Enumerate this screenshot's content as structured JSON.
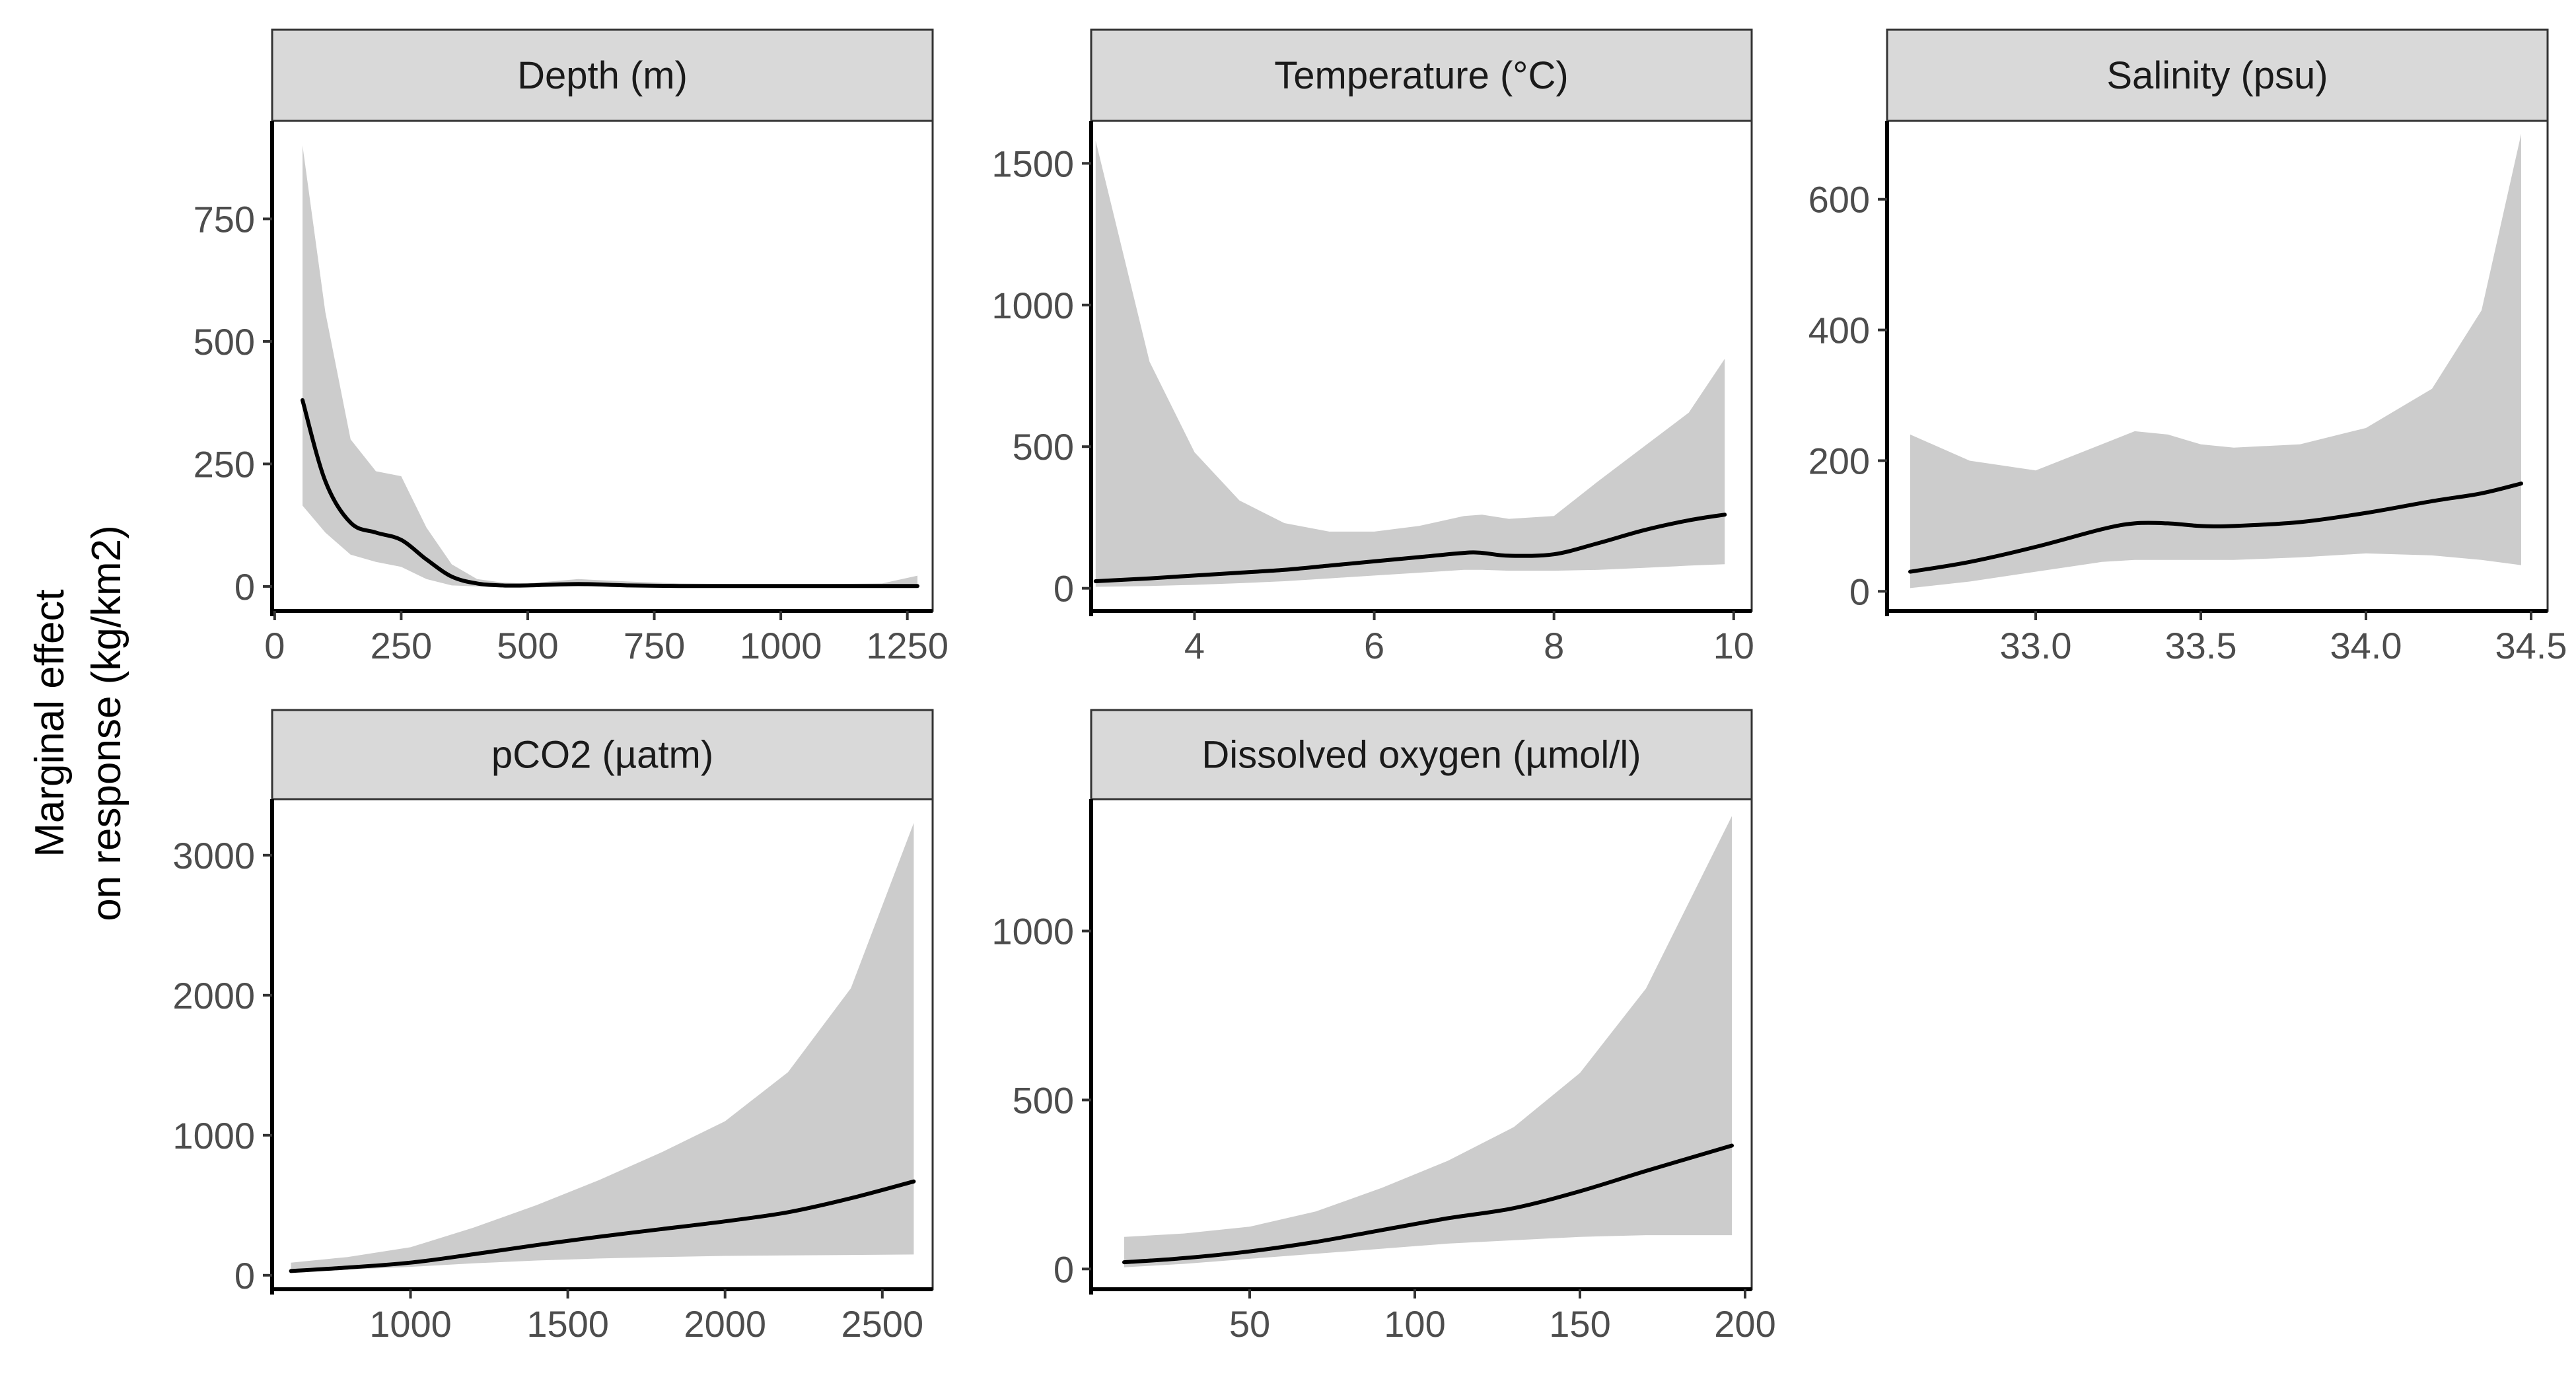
{
  "ylabel_line1": "Marginal effect",
  "ylabel_line2": "on response (kg/km2)",
  "colors": {
    "line": "#000000",
    "ribbon": "#cccccc",
    "strip_fill": "#d9d9d9",
    "strip_border": "#333333",
    "axis": "#000000",
    "panel_border": "#333333",
    "tick_label": "#4d4d4d"
  },
  "chart_data": [
    {
      "type": "line",
      "title": "Depth (m)",
      "xlabel": "",
      "ylabel": "Marginal effect on response (kg/km2)",
      "xlim": [
        -5,
        1300
      ],
      "ylim": [
        -50,
        950
      ],
      "x_ticks": [
        0,
        250,
        500,
        750,
        1000,
        1250
      ],
      "y_ticks": [
        0,
        250,
        500,
        750
      ],
      "x_tick_labels": [
        "0",
        "250",
        "500",
        "750",
        "1000",
        "1250"
      ],
      "y_tick_labels": [
        "0",
        "250",
        "500",
        "750"
      ],
      "series": [
        {
          "x": [
            55,
            100,
            150,
            200,
            250,
            300,
            350,
            400,
            450,
            500,
            600,
            700,
            800,
            900,
            1000,
            1100,
            1200,
            1270
          ],
          "y": [
            380,
            215,
            130,
            110,
            95,
            55,
            20,
            6,
            2,
            2,
            5,
            2,
            1,
            1,
            1,
            1,
            1,
            1
          ],
          "lower": [
            165,
            110,
            65,
            50,
            40,
            15,
            2,
            0,
            0,
            0,
            0,
            0,
            0,
            0,
            0,
            0,
            0,
            0
          ],
          "upper": [
            900,
            560,
            300,
            235,
            225,
            120,
            45,
            15,
            8,
            6,
            15,
            10,
            6,
            5,
            5,
            5,
            6,
            22
          ]
        }
      ]
    },
    {
      "type": "line",
      "title": "Temperature (°C)",
      "xlabel": "",
      "ylabel": "",
      "xlim": [
        2.85,
        10.2
      ],
      "ylim": [
        -80,
        1650
      ],
      "x_ticks": [
        4,
        6,
        8,
        10
      ],
      "y_ticks": [
        0,
        500,
        1000,
        1500
      ],
      "x_tick_labels": [
        "4",
        "6",
        "8",
        "10"
      ],
      "y_tick_labels": [
        "0",
        "500",
        "1000",
        "1500"
      ],
      "series": [
        {
          "x": [
            2.9,
            3.5,
            4,
            4.5,
            5,
            5.5,
            6,
            6.5,
            7,
            7.2,
            7.5,
            8,
            8.5,
            9,
            9.5,
            9.9
          ],
          "y": [
            25,
            35,
            45,
            55,
            65,
            80,
            95,
            110,
            125,
            125,
            115,
            120,
            160,
            205,
            240,
            260
          ],
          "lower": [
            5,
            8,
            12,
            18,
            25,
            35,
            45,
            55,
            65,
            65,
            62,
            62,
            65,
            72,
            80,
            85
          ],
          "upper": [
            1580,
            800,
            480,
            310,
            230,
            200,
            200,
            220,
            255,
            260,
            245,
            255,
            380,
            500,
            620,
            810
          ]
        }
      ]
    },
    {
      "type": "line",
      "title": "Salinity (psu)",
      "xlabel": "",
      "ylabel": "",
      "xlim": [
        32.55,
        34.55
      ],
      "ylim": [
        -30,
        720
      ],
      "x_ticks": [
        33.0,
        33.5,
        34.0,
        34.5
      ],
      "y_ticks": [
        0,
        200,
        400,
        600
      ],
      "x_tick_labels": [
        "33.0",
        "33.5",
        "34.0",
        "34.5"
      ],
      "y_tick_labels": [
        "0",
        "200",
        "400",
        "600"
      ],
      "series": [
        {
          "x": [
            32.62,
            32.8,
            33.0,
            33.2,
            33.3,
            33.4,
            33.5,
            33.6,
            33.8,
            34.0,
            34.2,
            34.35,
            34.47
          ],
          "y": [
            30,
            45,
            68,
            95,
            104,
            104,
            100,
            100,
            106,
            120,
            138,
            150,
            165
          ],
          "lower": [
            5,
            15,
            30,
            45,
            48,
            48,
            48,
            48,
            52,
            58,
            55,
            48,
            40
          ],
          "upper": [
            240,
            200,
            185,
            225,
            245,
            240,
            225,
            220,
            225,
            250,
            310,
            430,
            700
          ]
        }
      ]
    },
    {
      "type": "line",
      "title": "pCO2 (µatm)",
      "xlabel": "",
      "ylabel": "Marginal effect on response (kg/km2)",
      "xlim": [
        560,
        2660
      ],
      "ylim": [
        -100,
        3400
      ],
      "x_ticks": [
        1000,
        1500,
        2000,
        2500
      ],
      "y_ticks": [
        0,
        1000,
        2000,
        3000
      ],
      "x_tick_labels": [
        "1000",
        "1500",
        "2000",
        "2500"
      ],
      "y_tick_labels": [
        "0",
        "1000",
        "2000",
        "3000"
      ],
      "series": [
        {
          "x": [
            620,
            800,
            1000,
            1200,
            1400,
            1600,
            1800,
            2000,
            2200,
            2400,
            2600
          ],
          "y": [
            30,
            55,
            90,
            150,
            215,
            275,
            330,
            385,
            450,
            550,
            670
          ],
          "lower": [
            20,
            40,
            60,
            85,
            105,
            120,
            130,
            138,
            142,
            145,
            148
          ],
          "upper": [
            90,
            130,
            200,
            340,
            500,
            680,
            880,
            1100,
            1450,
            2050,
            3230
          ]
        }
      ]
    },
    {
      "type": "line",
      "title": "Dissolved oxygen (µmol/l)",
      "xlabel": "",
      "ylabel": "",
      "xlim": [
        2,
        202
      ],
      "ylim": [
        -60,
        1390
      ],
      "x_ticks": [
        50,
        100,
        150,
        200
      ],
      "y_ticks": [
        0,
        500,
        1000
      ],
      "x_tick_labels": [
        "50",
        "100",
        "150",
        "200"
      ],
      "y_tick_labels": [
        "0",
        "500",
        "1000"
      ],
      "series": [
        {
          "x": [
            12,
            30,
            50,
            70,
            90,
            110,
            130,
            150,
            170,
            196
          ],
          "y": [
            20,
            32,
            52,
            80,
            115,
            150,
            180,
            230,
            290,
            365
          ],
          "lower": [
            5,
            15,
            30,
            45,
            60,
            75,
            85,
            95,
            100,
            100
          ],
          "upper": [
            95,
            105,
            125,
            170,
            240,
            320,
            420,
            580,
            830,
            1340
          ]
        }
      ]
    }
  ]
}
